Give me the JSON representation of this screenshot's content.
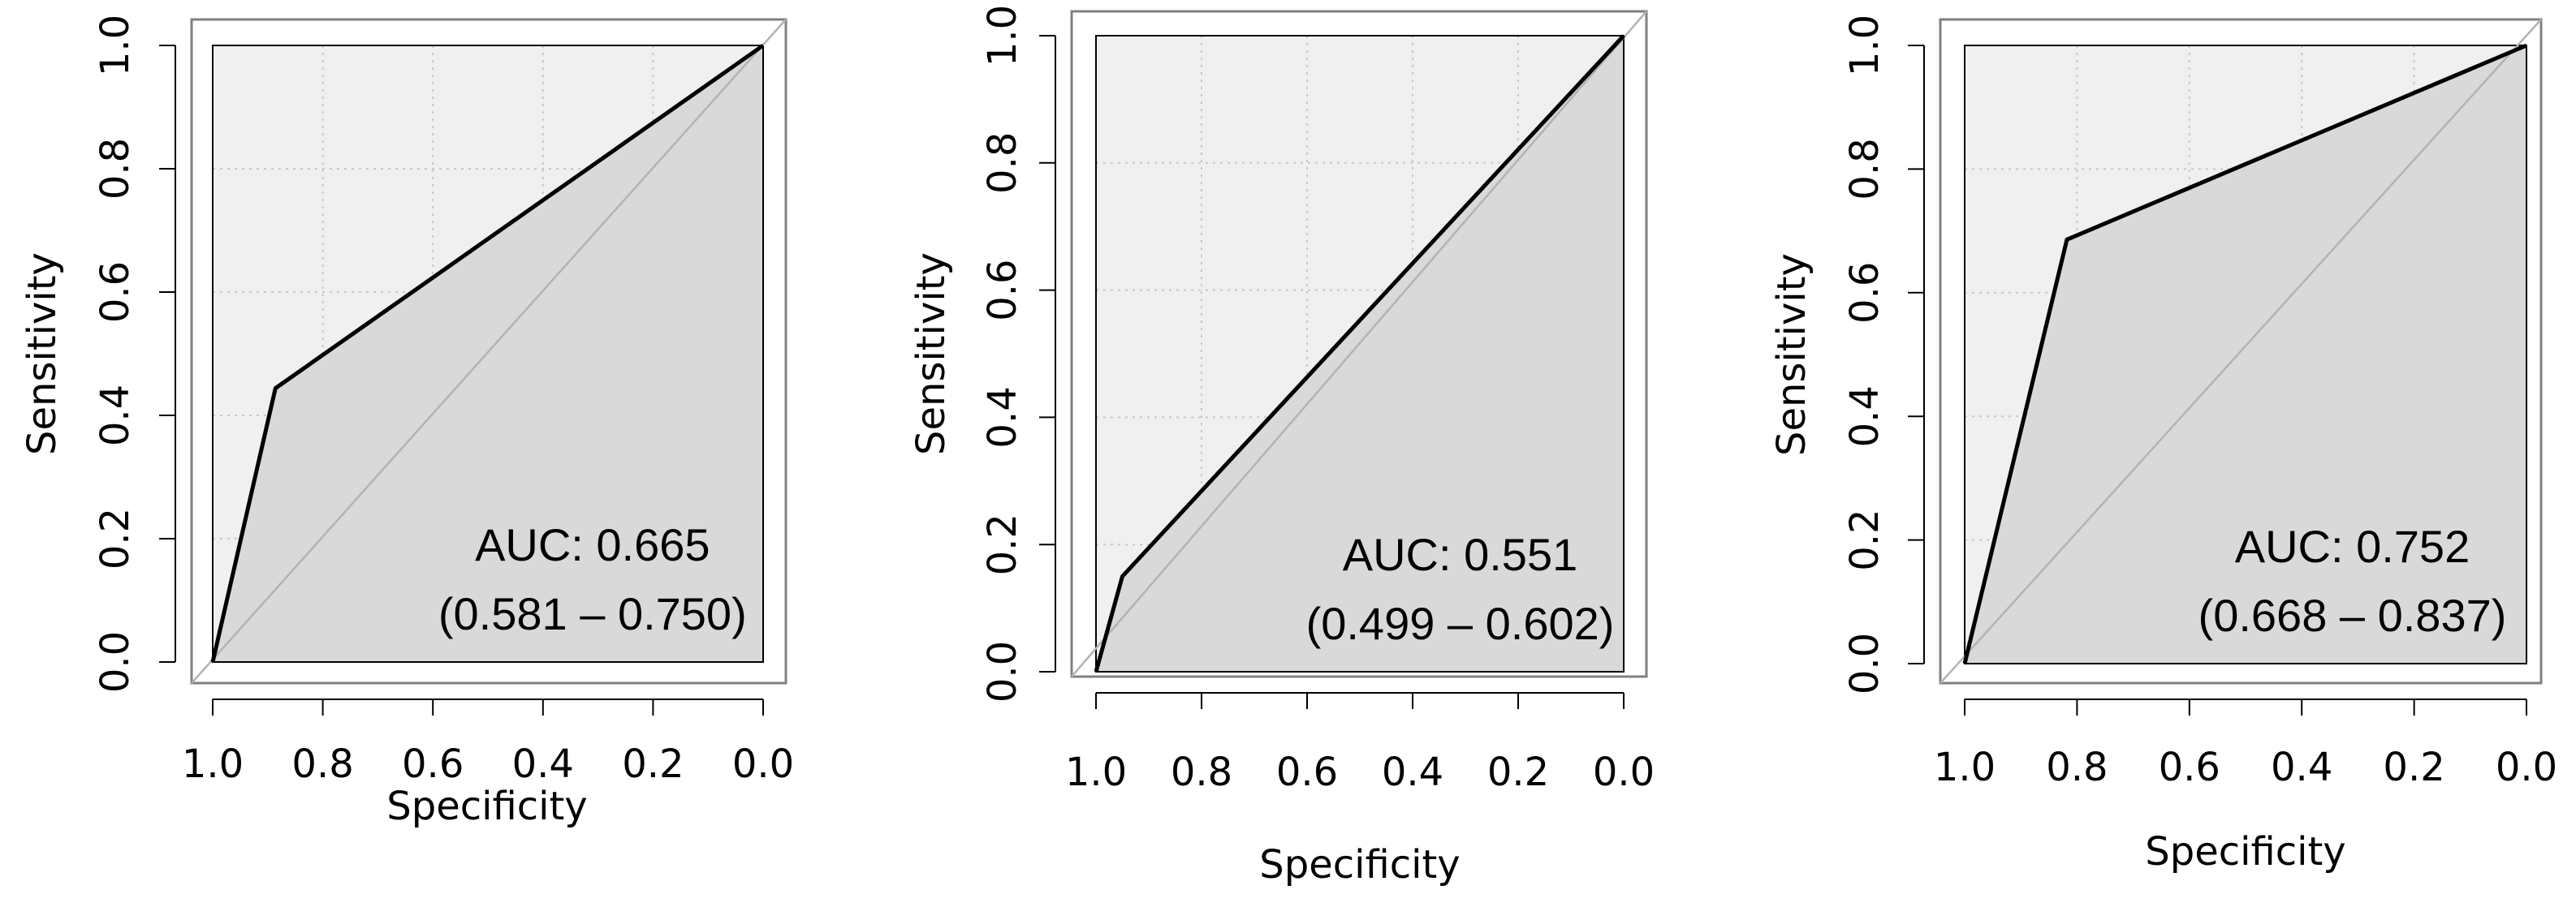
{
  "colors": {
    "outer_fill": "#f0f0f0",
    "auc_fill": "#d9d9d9",
    "diagonal": "#b3b3b3",
    "curve": "#000000",
    "grid": "#c8c8c8"
  },
  "chart_data": [
    {
      "type": "line",
      "title": "",
      "xlabel": "Specificity",
      "ylabel": "Sensitivity",
      "xlim": [
        1.0,
        0.0
      ],
      "ylim": [
        0.0,
        1.0
      ],
      "x_reversed": true,
      "grid": true,
      "xticks": [
        "1.0",
        "0.8",
        "0.6",
        "0.4",
        "0.2",
        "0.0"
      ],
      "yticks": [
        "0.0",
        "0.2",
        "0.4",
        "0.6",
        "0.8",
        "1.0"
      ],
      "specificity": [
        1.0,
        0.886,
        0.0
      ],
      "sensitivity": [
        0.0,
        0.444,
        1.0
      ],
      "auc_label": "AUC: 0.665",
      "ci_label": "(0.581 – 0.750)"
    },
    {
      "type": "line",
      "title": "",
      "xlabel": "Specificity",
      "ylabel": "Sensitivity",
      "xlim": [
        1.0,
        0.0
      ],
      "ylim": [
        0.0,
        1.0
      ],
      "x_reversed": true,
      "grid": true,
      "xticks": [
        "1.0",
        "0.8",
        "0.6",
        "0.4",
        "0.2",
        "0.0"
      ],
      "yticks": [
        "0.0",
        "0.2",
        "0.4",
        "0.6",
        "0.8",
        "1.0"
      ],
      "specificity": [
        1.0,
        0.95,
        0.0
      ],
      "sensitivity": [
        0.0,
        0.15,
        1.0
      ],
      "auc_label": "AUC: 0.551",
      "ci_label": "(0.499 – 0.602)"
    },
    {
      "type": "line",
      "title": "",
      "xlabel": "Specificity",
      "ylabel": "Sensitivity",
      "xlim": [
        1.0,
        0.0
      ],
      "ylim": [
        0.0,
        1.0
      ],
      "x_reversed": true,
      "grid": true,
      "xticks": [
        "1.0",
        "0.8",
        "0.6",
        "0.4",
        "0.2",
        "0.0"
      ],
      "yticks": [
        "0.0",
        "0.2",
        "0.4",
        "0.6",
        "0.8",
        "1.0"
      ],
      "specificity": [
        1.0,
        0.818,
        0.0
      ],
      "sensitivity": [
        0.0,
        0.686,
        1.0
      ],
      "auc_label": "AUC: 0.752",
      "ci_label": "(0.668 – 0.837)"
    }
  ]
}
